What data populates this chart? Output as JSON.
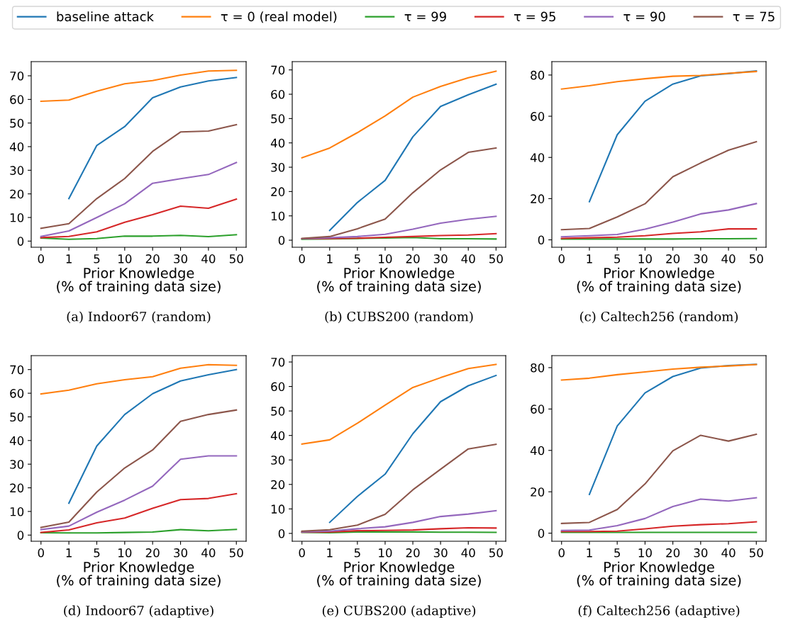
{
  "chart_data": [
    {
      "type": "line",
      "title": "(a) Indoor67 (random)",
      "xlabel": "Prior Knowledge\n(% of training data size)",
      "categories": [
        "0",
        "1",
        "5",
        "10",
        "20",
        "30",
        "40",
        "50"
      ],
      "ylim": [
        -2.6,
        76
      ],
      "yticks": [
        0,
        10,
        20,
        30,
        40,
        50,
        60,
        70
      ],
      "legend": "top",
      "series": [
        {
          "name": "baseline attack",
          "color": "#1f77b4",
          "values": [
            null,
            18,
            40.5,
            48.5,
            60.7,
            65.3,
            67.8,
            69.3
          ]
        },
        {
          "name": "τ = 0 (real model)",
          "color": "#ff7f0e",
          "values": [
            59.2,
            59.7,
            63.5,
            66.6,
            68,
            70.3,
            72,
            72.3
          ]
        },
        {
          "name": "τ = 99",
          "color": "#2ca02c",
          "values": [
            1.3,
            0.8,
            1.1,
            2.1,
            2.1,
            2.4,
            1.9,
            2.7
          ]
        },
        {
          "name": "τ = 95",
          "color": "#d62728",
          "values": [
            1.5,
            2.0,
            3.9,
            8.0,
            11.2,
            14.8,
            13.9,
            17.8
          ]
        },
        {
          "name": "τ = 90",
          "color": "#9467bd",
          "values": [
            2.0,
            4.3,
            10,
            15.8,
            24.5,
            26.4,
            28.2,
            33.3
          ]
        },
        {
          "name": "τ = 75",
          "color": "#8c564b",
          "values": [
            5.4,
            7.4,
            18,
            26.5,
            38,
            46.2,
            46.6,
            49.3
          ]
        }
      ]
    },
    {
      "type": "line",
      "title": "(b) CUBS200 (random)",
      "xlabel": "Prior Knowledge\n(% of training data size)",
      "categories": [
        "0",
        "1",
        "5",
        "10",
        "20",
        "30",
        "40",
        "50"
      ],
      "ylim": [
        -2.9,
        73.4
      ],
      "yticks": [
        0,
        10,
        20,
        30,
        40,
        50,
        60,
        70
      ],
      "series": [
        {
          "color": "#1f77b4",
          "values": [
            null,
            4,
            15.5,
            24.6,
            42.5,
            55,
            59.8,
            64.1
          ]
        },
        {
          "color": "#ff7f0e",
          "values": [
            33.9,
            37.9,
            44.2,
            51.1,
            58.8,
            63.2,
            66.8,
            69.5
          ]
        },
        {
          "color": "#2ca02c",
          "values": [
            0.4,
            0.5,
            0.7,
            0.9,
            1.1,
            0.6,
            0.6,
            0.5
          ]
        },
        {
          "color": "#d62728",
          "values": [
            0.6,
            0.7,
            0.8,
            1.2,
            1.5,
            1.9,
            2.1,
            2.7
          ]
        },
        {
          "color": "#9467bd",
          "values": [
            0.6,
            1.0,
            1.5,
            2.4,
            4.5,
            7.0,
            8.6,
            9.8
          ]
        },
        {
          "color": "#8c564b",
          "values": [
            0.7,
            1.5,
            4.7,
            8.7,
            19.5,
            28.9,
            36.1,
            37.9
          ]
        }
      ]
    },
    {
      "type": "line",
      "title": "(c) Caltech256 (random)",
      "xlabel": "Prior Knowledge\n(% of training data size)",
      "categories": [
        "0",
        "1",
        "5",
        "10",
        "20",
        "30",
        "40",
        "50"
      ],
      "ylim": [
        -3.6,
        86.5
      ],
      "yticks": [
        0,
        20,
        40,
        60,
        80
      ],
      "series": [
        {
          "color": "#1f77b4",
          "values": [
            null,
            18.5,
            51,
            67.3,
            75.6,
            79.6,
            80.7,
            82
          ]
        },
        {
          "color": "#ff7f0e",
          "values": [
            73.2,
            74.8,
            76.8,
            78.2,
            79.4,
            79.8,
            80.8,
            81.7
          ]
        },
        {
          "color": "#2ca02c",
          "values": [
            0.4,
            0.4,
            0.4,
            0.4,
            0.4,
            0.5,
            0.5,
            0.6
          ]
        },
        {
          "color": "#d62728",
          "values": [
            0.7,
            1.0,
            1.3,
            2.0,
            3.1,
            3.9,
            5.3,
            5.3
          ]
        },
        {
          "color": "#9467bd",
          "values": [
            1.5,
            2.0,
            2.6,
            5.2,
            8.6,
            12.6,
            14.5,
            17.6
          ]
        },
        {
          "color": "#8c564b",
          "values": [
            4.9,
            5.5,
            11.1,
            17.5,
            30.6,
            37.3,
            43.5,
            47.6
          ]
        }
      ]
    },
    {
      "type": "line",
      "title": "(d) Indoor67 (adaptive)",
      "xlabel": "Prior Knowledge\n(% of training data size)",
      "categories": [
        "0",
        "1",
        "5",
        "10",
        "20",
        "30",
        "40",
        "50"
      ],
      "ylim": [
        -2.6,
        75.9
      ],
      "yticks": [
        0,
        10,
        20,
        30,
        40,
        50,
        60,
        70
      ],
      "series": [
        {
          "color": "#1f77b4",
          "values": [
            null,
            13.5,
            37.7,
            51,
            59.8,
            65.2,
            67.8,
            70
          ]
        },
        {
          "color": "#ff7f0e",
          "values": [
            59.7,
            61.3,
            64,
            65.7,
            67,
            70.6,
            72.1,
            71.8
          ]
        },
        {
          "color": "#2ca02c",
          "values": [
            1.0,
            0.9,
            0.9,
            1.1,
            1.3,
            2.3,
            1.8,
            2.4
          ]
        },
        {
          "color": "#d62728",
          "values": [
            1.1,
            2.2,
            5.2,
            7.2,
            11.3,
            15,
            15.5,
            17.5
          ]
        },
        {
          "color": "#9467bd",
          "values": [
            2.3,
            3.8,
            9.7,
            14.8,
            20.7,
            32.1,
            33.5,
            33.5
          ]
        },
        {
          "color": "#8c564b",
          "values": [
            3.2,
            5.5,
            18.2,
            28.4,
            36,
            48.1,
            51,
            52.9
          ]
        }
      ]
    },
    {
      "type": "line",
      "title": "(e) CUBS200 (adaptive)",
      "xlabel": "Prior Knowledge\n(% of training data size)",
      "categories": [
        "0",
        "1",
        "5",
        "10",
        "20",
        "30",
        "40",
        "50"
      ],
      "ylim": [
        -3.2,
        72.6
      ],
      "yticks": [
        0,
        10,
        20,
        30,
        40,
        50,
        60,
        70
      ],
      "series": [
        {
          "color": "#1f77b4",
          "values": [
            null,
            4.5,
            15.1,
            24.2,
            40.7,
            53.8,
            60.3,
            64.5
          ]
        },
        {
          "color": "#ff7f0e",
          "values": [
            36.5,
            38.2,
            45,
            52.4,
            59.6,
            63.6,
            67.3,
            69
          ]
        },
        {
          "color": "#2ca02c",
          "values": [
            0.4,
            0.3,
            0.6,
            0.6,
            0.6,
            0.5,
            0.5,
            0.4
          ]
        },
        {
          "color": "#d62728",
          "values": [
            0.5,
            0.6,
            1.1,
            1.2,
            1.4,
            1.9,
            2.3,
            2.2
          ]
        },
        {
          "color": "#9467bd",
          "values": [
            0.6,
            0.9,
            1.9,
            2.7,
            4.5,
            6.9,
            7.9,
            9.3
          ]
        },
        {
          "color": "#8c564b",
          "values": [
            0.9,
            1.5,
            3.4,
            7.8,
            17.8,
            26.2,
            34.5,
            36.4
          ]
        }
      ]
    },
    {
      "type": "line",
      "title": "(f) Caltech256 (adaptive)",
      "xlabel": "Prior Knowledge\n(% of training data size)",
      "categories": [
        "0",
        "1",
        "5",
        "10",
        "20",
        "30",
        "40",
        "50"
      ],
      "ylim": [
        -3.9,
        85.8
      ],
      "yticks": [
        0,
        20,
        40,
        60,
        80
      ],
      "series": [
        {
          "color": "#1f77b4",
          "values": [
            null,
            18.7,
            51.8,
            67.8,
            75.7,
            79.8,
            81,
            81.6
          ]
        },
        {
          "color": "#ff7f0e",
          "values": [
            74,
            74.9,
            76.6,
            77.9,
            79.3,
            80.2,
            80.8,
            81.5
          ]
        },
        {
          "color": "#2ca02c",
          "values": [
            0.4,
            0.4,
            0.4,
            0.4,
            0.4,
            0.4,
            0.4,
            0.4
          ]
        },
        {
          "color": "#d62728",
          "values": [
            0.8,
            0.8,
            1.0,
            2.1,
            3.4,
            4.1,
            4.6,
            5.5
          ]
        },
        {
          "color": "#9467bd",
          "values": [
            1.3,
            1.5,
            3.6,
            7.1,
            12.9,
            16.5,
            15.5,
            17.1
          ]
        },
        {
          "color": "#8c564b",
          "values": [
            4.7,
            5.2,
            11.4,
            23.8,
            39.8,
            47.3,
            44.5,
            47.8
          ]
        }
      ]
    }
  ]
}
